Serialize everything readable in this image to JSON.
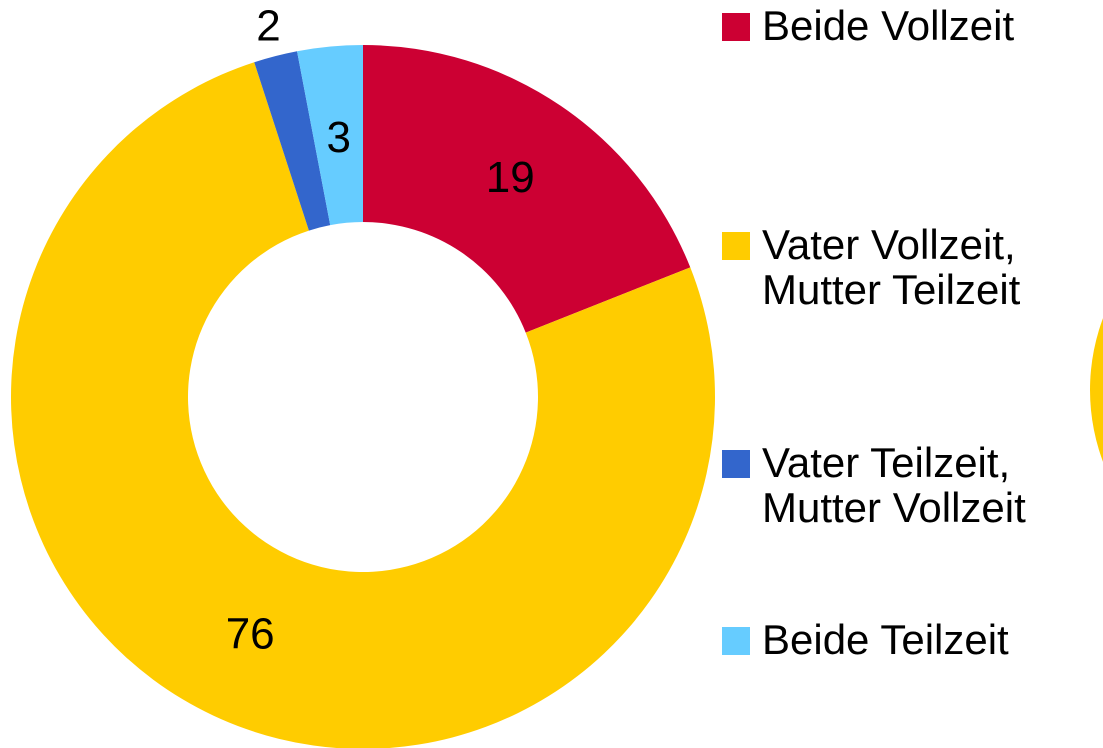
{
  "chart_data": {
    "type": "donut",
    "categories": [
      "Beide Vollzeit",
      "Vater Vollzeit, Mutter Teilzeit",
      "Vater Teilzeit, Mutter Vollzeit",
      "Beide Teilzeit"
    ],
    "values": [
      19,
      76,
      2,
      3
    ],
    "colors": [
      "#cc0033",
      "#ffcc00",
      "#3366cc",
      "#66ccff"
    ]
  }
}
